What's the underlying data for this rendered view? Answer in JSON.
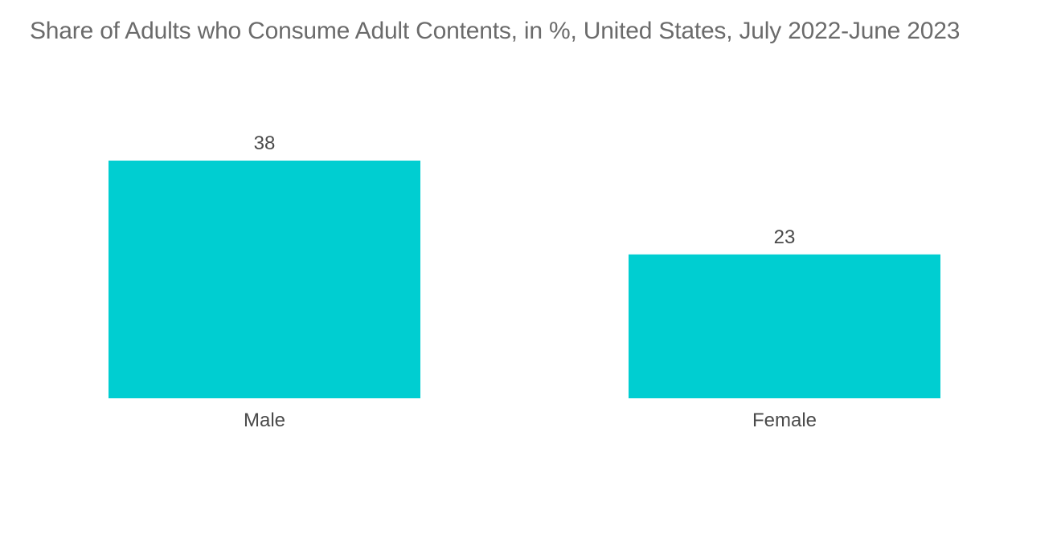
{
  "chart_data": {
    "type": "bar",
    "title": "Share of Adults who Consume Adult Contents, in %, United States, July 2022-June 2023",
    "categories": [
      "Male",
      "Female"
    ],
    "values": [
      38,
      23
    ],
    "ylim": [
      0,
      38
    ],
    "bar_color": "#00ced1",
    "grid": false,
    "legend": "none"
  }
}
